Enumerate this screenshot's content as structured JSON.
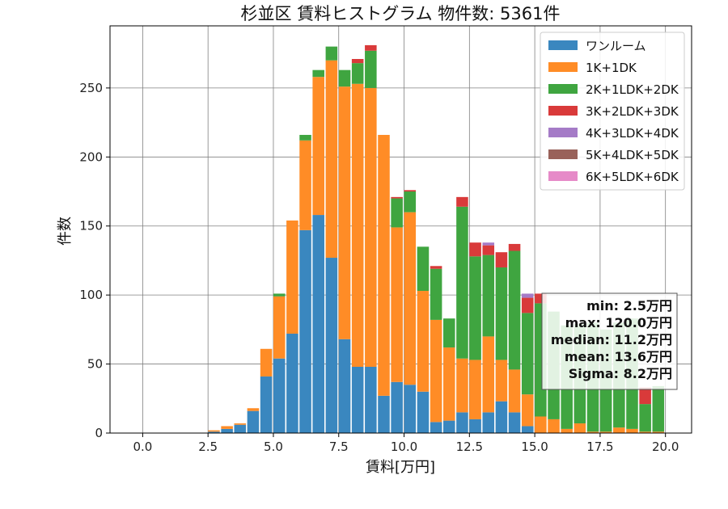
{
  "chart_data": {
    "type": "bar",
    "stacked": true,
    "title": "杉並区 賃料ヒストグラム  物件数: 5361件",
    "xlabel": "賃料[万円]",
    "ylabel": "件数",
    "xlim": [
      -1.25,
      21.0
    ],
    "ylim": [
      0,
      295
    ],
    "xticks": [
      "0.0",
      "2.5",
      "5.0",
      "7.5",
      "10.0",
      "12.5",
      "15.0",
      "17.5",
      "20.0"
    ],
    "yticks": [
      "0",
      "50",
      "100",
      "150",
      "200",
      "250"
    ],
    "grid": true,
    "legend_position": "top-right",
    "bin_width": 0.5,
    "x": [
      2.0,
      2.5,
      3.0,
      3.5,
      4.0,
      4.5,
      5.0,
      5.5,
      6.0,
      6.5,
      7.0,
      7.5,
      8.0,
      8.5,
      9.0,
      9.5,
      10.0,
      10.5,
      11.0,
      11.5,
      12.0,
      12.5,
      13.0,
      13.5,
      14.0,
      14.5,
      15.0,
      15.5,
      16.0,
      16.5,
      17.0,
      17.5,
      18.0,
      18.5,
      19.0,
      19.5
    ],
    "series": [
      {
        "name": "ワンルーム",
        "color": "#3a87bf",
        "values": [
          0,
          1,
          3,
          6,
          16,
          41,
          54,
          72,
          147,
          158,
          127,
          68,
          48,
          48,
          27,
          37,
          35,
          30,
          8,
          9,
          15,
          10,
          15,
          23,
          15,
          5,
          0,
          0,
          0,
          0,
          0,
          0,
          0,
          0,
          0,
          0
        ]
      },
      {
        "name": "1K+1DK",
        "color": "#ff8c26",
        "values": [
          0,
          1,
          2,
          1,
          2,
          20,
          45,
          82,
          65,
          100,
          143,
          183,
          205,
          202,
          189,
          112,
          125,
          73,
          74,
          53,
          39,
          43,
          55,
          30,
          31,
          23,
          12,
          10,
          3,
          7,
          1,
          1,
          4,
          3,
          1,
          1
        ]
      },
      {
        "name": "2K+1LDK+2DK",
        "color": "#3fa540",
        "values": [
          0,
          0,
          0,
          0,
          0,
          0,
          2,
          0,
          4,
          5,
          10,
          12,
          15,
          27,
          0,
          21,
          15,
          32,
          37,
          21,
          110,
          75,
          59,
          67,
          86,
          59,
          82,
          78,
          75,
          72,
          79,
          74,
          76,
          80,
          20,
          33
        ]
      },
      {
        "name": "3K+2LDK+3DK",
        "color": "#d93a3a",
        "values": [
          0,
          0,
          0,
          0,
          0,
          0,
          0,
          0,
          0,
          0,
          0,
          0,
          3,
          4,
          0,
          1,
          1,
          0,
          2,
          0,
          7,
          10,
          7,
          11,
          5,
          11,
          7,
          0,
          0,
          0,
          0,
          0,
          0,
          0,
          12,
          0
        ]
      },
      {
        "name": "4K+3LDK+4DK",
        "color": "#a57bc7",
        "values": [
          0,
          0,
          0,
          0,
          0,
          0,
          0,
          0,
          0,
          0,
          0,
          0,
          0,
          0,
          0,
          0,
          0,
          0,
          0,
          0,
          0,
          0,
          2,
          0,
          0,
          3,
          0,
          0,
          0,
          0,
          0,
          0,
          0,
          0,
          0,
          0
        ]
      },
      {
        "name": "5K+4LDK+5DK",
        "color": "#99625a",
        "values": [
          0,
          0,
          0,
          0,
          0,
          0,
          0,
          0,
          0,
          0,
          0,
          0,
          0,
          0,
          0,
          0,
          0,
          0,
          0,
          0,
          0,
          0,
          0,
          0,
          0,
          0,
          0,
          0,
          0,
          0,
          0,
          0,
          0,
          0,
          0,
          0
        ]
      },
      {
        "name": "6K+5LDK+6DK",
        "color": "#e68ac8",
        "values": [
          0,
          0,
          0,
          0,
          0,
          0,
          0,
          0,
          0,
          0,
          0,
          0,
          0,
          0,
          0,
          0,
          0,
          0,
          0,
          0,
          0,
          0,
          0,
          0,
          0,
          0,
          0,
          0,
          0,
          0,
          0,
          0,
          0,
          0,
          0,
          0
        ]
      }
    ],
    "annotations": [
      "min: 2.5万円",
      "max: 120.0万円",
      "median: 11.2万円",
      "mean: 13.6万円",
      "Sigma: 8.2万円"
    ]
  }
}
